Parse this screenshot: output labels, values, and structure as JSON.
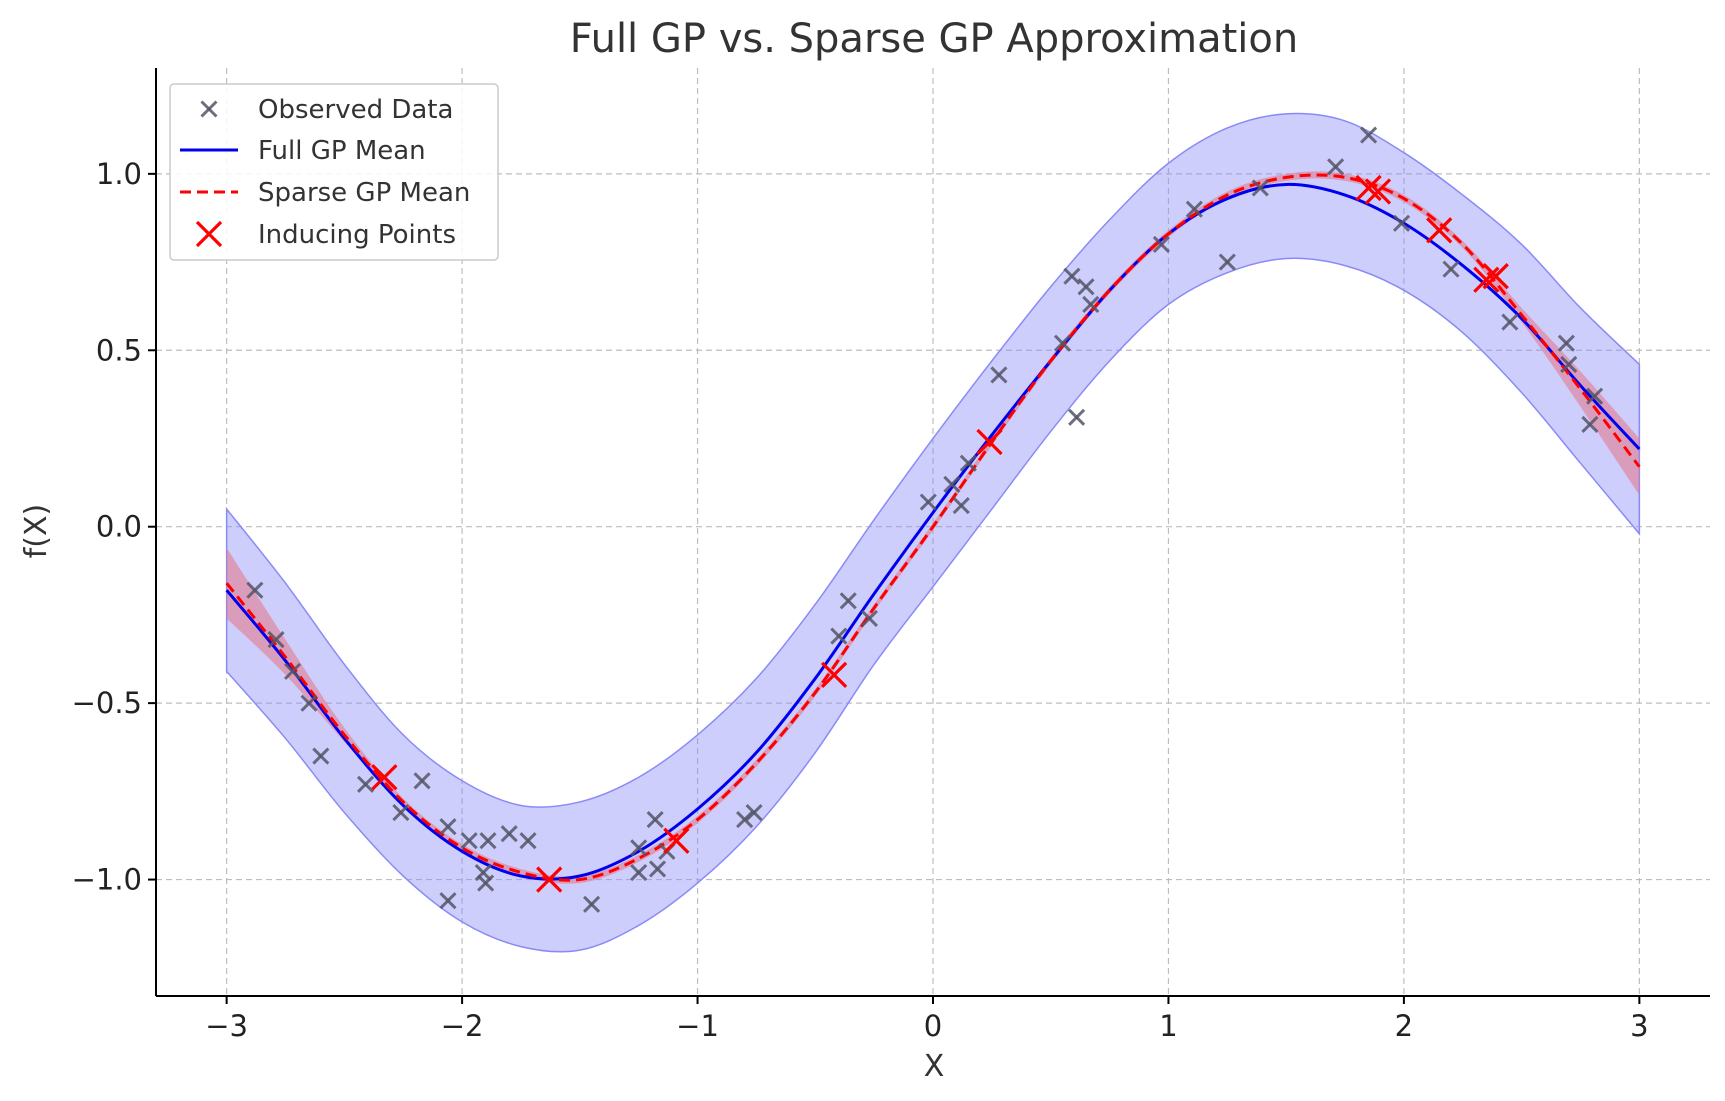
{
  "chart_data": {
    "type": "line",
    "title": "Full GP vs. Sparse GP Approximation",
    "xlabel": "X",
    "ylabel": "f(X)",
    "xlim": [
      -3.3,
      3.3
    ],
    "ylim": [
      -1.33,
      1.3
    ],
    "grid": true,
    "legend_position": "top-left",
    "x_ticks": [
      -3,
      -2,
      -1,
      0,
      1,
      2,
      3
    ],
    "x_tick_labels": [
      "−3",
      "−2",
      "−1",
      "0",
      "1",
      "2",
      "3"
    ],
    "y_ticks": [
      -1.0,
      -0.5,
      0.0,
      0.5,
      1.0
    ],
    "y_tick_labels": [
      "−1.0",
      "−0.5",
      "0.0",
      "0.5",
      "1.0"
    ],
    "legend": [
      "Observed Data",
      "Full GP Mean",
      "Sparse GP Mean",
      "Inducing Points"
    ],
    "colors": {
      "observed": "#555566",
      "full_mean": "#0000ee",
      "full_band": "#8a8af7",
      "sparse_mean": "#ff0000",
      "sparse_band": "#e27b8f",
      "inducing": "#ff0000"
    },
    "observed_data": [
      [
        -2.88,
        -0.18
      ],
      [
        -2.79,
        -0.32
      ],
      [
        -2.72,
        -0.41
      ],
      [
        -2.65,
        -0.5
      ],
      [
        -2.6,
        -0.65
      ],
      [
        -2.41,
        -0.73
      ],
      [
        -2.26,
        -0.81
      ],
      [
        -2.17,
        -0.72
      ],
      [
        -2.06,
        -0.85
      ],
      [
        -2.06,
        -1.06
      ],
      [
        -1.97,
        -0.89
      ],
      [
        -1.91,
        -0.98
      ],
      [
        -1.9,
        -1.01
      ],
      [
        -1.89,
        -0.89
      ],
      [
        -1.8,
        -0.87
      ],
      [
        -1.72,
        -0.89
      ],
      [
        -1.45,
        -1.07
      ],
      [
        -1.25,
        -0.91
      ],
      [
        -1.25,
        -0.98
      ],
      [
        -1.18,
        -0.83
      ],
      [
        -1.17,
        -0.97
      ],
      [
        -1.13,
        -0.92
      ],
      [
        -0.8,
        -0.83
      ],
      [
        -0.76,
        -0.81
      ],
      [
        -0.4,
        -0.31
      ],
      [
        -0.36,
        -0.21
      ],
      [
        -0.27,
        -0.26
      ],
      [
        -0.02,
        0.07
      ],
      [
        0.08,
        0.12
      ],
      [
        0.12,
        0.06
      ],
      [
        0.15,
        0.18
      ],
      [
        0.28,
        0.43
      ],
      [
        0.55,
        0.52
      ],
      [
        0.59,
        0.71
      ],
      [
        0.61,
        0.31
      ],
      [
        0.65,
        0.68
      ],
      [
        0.67,
        0.63
      ],
      [
        0.97,
        0.8
      ],
      [
        1.11,
        0.9
      ],
      [
        1.25,
        0.75
      ],
      [
        1.39,
        0.96
      ],
      [
        1.71,
        1.02
      ],
      [
        1.85,
        1.11
      ],
      [
        1.99,
        0.86
      ],
      [
        2.2,
        0.73
      ],
      [
        2.45,
        0.58
      ],
      [
        2.69,
        0.52
      ],
      [
        2.7,
        0.46
      ],
      [
        2.79,
        0.29
      ],
      [
        2.81,
        0.37
      ]
    ],
    "inducing_points": [
      [
        -2.33,
        -0.71
      ],
      [
        -1.63,
        -1.0
      ],
      [
        -1.09,
        -0.89
      ],
      [
        -0.42,
        -0.42
      ],
      [
        0.24,
        0.24
      ],
      [
        1.85,
        0.96
      ],
      [
        1.89,
        0.95
      ],
      [
        2.15,
        0.84
      ],
      [
        2.35,
        0.7
      ],
      [
        2.39,
        0.71
      ]
    ],
    "series": [
      {
        "name": "Full GP Mean",
        "x": [
          -3.0,
          -2.75,
          -2.5,
          -2.25,
          -2.0,
          -1.75,
          -1.5,
          -1.25,
          -1.0,
          -0.75,
          -0.5,
          -0.25,
          0.0,
          0.25,
          0.5,
          0.75,
          1.0,
          1.25,
          1.5,
          1.75,
          2.0,
          2.25,
          2.5,
          2.75,
          3.0
        ],
        "y": [
          -0.18,
          -0.38,
          -0.6,
          -0.79,
          -0.92,
          -0.99,
          -0.99,
          -0.92,
          -0.8,
          -0.64,
          -0.43,
          -0.19,
          0.04,
          0.26,
          0.47,
          0.67,
          0.83,
          0.93,
          0.97,
          0.94,
          0.86,
          0.74,
          0.59,
          0.4,
          0.22
        ],
        "band_lower": [
          -0.41,
          -0.6,
          -0.81,
          -0.99,
          -1.12,
          -1.19,
          -1.2,
          -1.13,
          -1.01,
          -0.85,
          -0.64,
          -0.39,
          -0.17,
          0.05,
          0.27,
          0.47,
          0.63,
          0.72,
          0.76,
          0.74,
          0.67,
          0.55,
          0.38,
          0.18,
          -0.02
        ],
        "band_upper": [
          0.05,
          -0.16,
          -0.39,
          -0.59,
          -0.72,
          -0.79,
          -0.78,
          -0.71,
          -0.59,
          -0.43,
          -0.22,
          0.02,
          0.25,
          0.47,
          0.68,
          0.87,
          1.03,
          1.13,
          1.17,
          1.15,
          1.06,
          0.94,
          0.8,
          0.62,
          0.46
        ]
      },
      {
        "name": "Sparse GP Mean",
        "x": [
          -3.0,
          -2.75,
          -2.5,
          -2.25,
          -2.0,
          -1.75,
          -1.5,
          -1.25,
          -1.0,
          -0.75,
          -0.5,
          -0.25,
          0.0,
          0.25,
          0.5,
          0.75,
          1.0,
          1.25,
          1.5,
          1.75,
          2.0,
          2.25,
          2.5,
          2.75,
          3.0
        ],
        "y": [
          -0.16,
          -0.37,
          -0.59,
          -0.78,
          -0.91,
          -0.98,
          -1.0,
          -0.94,
          -0.83,
          -0.67,
          -0.47,
          -0.23,
          0.0,
          0.24,
          0.47,
          0.67,
          0.83,
          0.94,
          0.99,
          0.99,
          0.93,
          0.8,
          0.6,
          0.39,
          0.17
        ],
        "band_lower": [
          -0.26,
          -0.42,
          -0.61,
          -0.79,
          -0.92,
          -0.99,
          -1.01,
          -0.95,
          -0.84,
          -0.68,
          -0.48,
          -0.24,
          -0.01,
          0.23,
          0.46,
          0.66,
          0.82,
          0.93,
          0.98,
          0.98,
          0.92,
          0.79,
          0.58,
          0.34,
          0.09
        ],
        "band_upper": [
          -0.06,
          -0.32,
          -0.57,
          -0.77,
          -0.9,
          -0.97,
          -0.99,
          -0.93,
          -0.82,
          -0.66,
          -0.46,
          -0.22,
          0.01,
          0.25,
          0.48,
          0.68,
          0.84,
          0.95,
          1.0,
          1.0,
          0.94,
          0.81,
          0.62,
          0.44,
          0.25
        ]
      }
    ]
  }
}
